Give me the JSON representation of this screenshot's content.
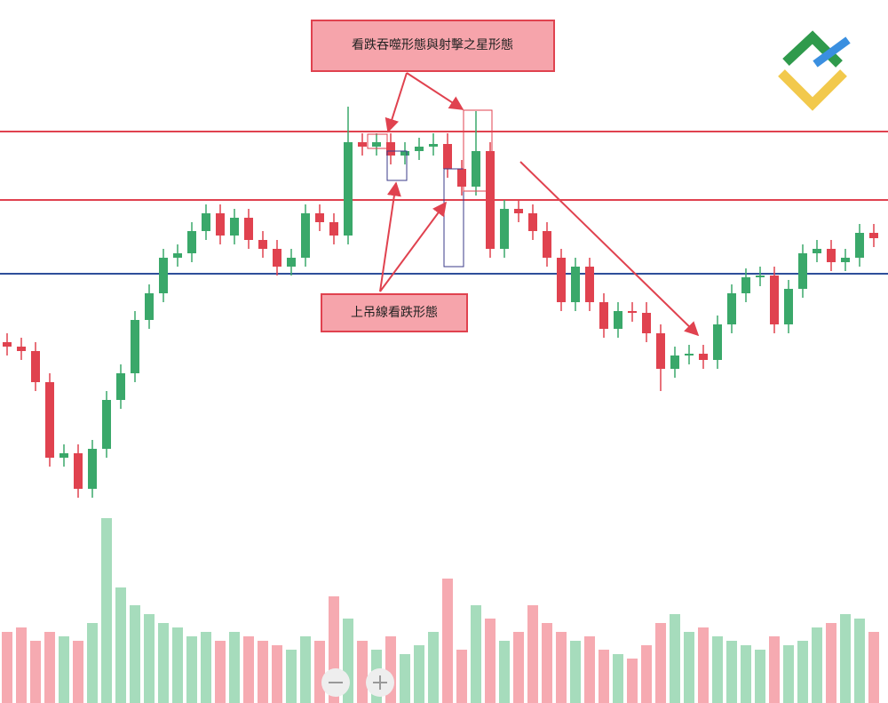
{
  "chart_data": {
    "type": "candlestick",
    "annotations": [
      "看跌吞噬形態與射擊之星形態",
      "上吊線看跌形態"
    ],
    "open": [
      43,
      42,
      41,
      34,
      17,
      18,
      10,
      19,
      30,
      36,
      48,
      54,
      62,
      63,
      68,
      72,
      67,
      71,
      66,
      64,
      60,
      62,
      72,
      70,
      67,
      88,
      87,
      88,
      85,
      86,
      87,
      87.6,
      82,
      78,
      86,
      64,
      73,
      72,
      68,
      62,
      52,
      60,
      52,
      46,
      50,
      49.6,
      45,
      37,
      40,
      40.4,
      39,
      47,
      54,
      57.6,
      58,
      47,
      55,
      63,
      64,
      61,
      62,
      67.6
    ],
    "high": [
      45,
      44,
      43,
      36,
      20,
      20,
      21,
      32,
      38,
      50,
      56,
      64,
      65,
      70,
      74,
      74,
      73,
      73,
      68,
      66,
      64,
      74,
      74,
      72,
      96,
      90,
      90,
      90,
      88,
      89,
      90,
      90,
      84,
      95,
      88,
      75,
      75,
      74,
      70,
      64,
      62,
      62,
      54,
      52,
      52,
      52,
      47,
      42,
      42.4,
      42.4,
      49,
      56,
      59.6,
      60,
      60,
      57,
      65,
      66,
      66,
      64,
      69.6,
      69.6
    ],
    "low": [
      40,
      39,
      32,
      15,
      15,
      8,
      8,
      17,
      28,
      34,
      46,
      52,
      60,
      61,
      66,
      65,
      65,
      64,
      62,
      58,
      58,
      60,
      68,
      65,
      65,
      85,
      85,
      83,
      83,
      84,
      85,
      80,
      76,
      76,
      62,
      62,
      70,
      66,
      60,
      50,
      50,
      50,
      44,
      44,
      47.6,
      43,
      32,
      35,
      38,
      37,
      37,
      45,
      52,
      55.6,
      45,
      45,
      53,
      61,
      59,
      59,
      60,
      64.4
    ],
    "close": [
      42,
      41,
      34,
      17,
      18,
      10,
      19,
      30,
      36,
      48,
      54,
      62,
      63,
      68,
      72,
      67,
      71,
      66,
      64,
      60,
      62,
      72,
      70,
      67,
      88,
      87,
      88,
      85,
      86,
      87,
      87.6,
      82,
      78,
      86,
      64,
      73,
      72,
      68,
      62,
      52,
      60,
      52,
      46,
      50,
      49.6,
      45,
      37,
      40,
      40.4,
      39,
      47,
      54,
      57.6,
      58,
      47,
      55,
      63,
      64,
      61,
      62,
      67.6,
      66.4
    ],
    "volume": [
      80,
      85,
      70,
      80,
      75,
      70,
      90,
      208,
      130,
      110,
      100,
      90,
      85,
      75,
      80,
      70,
      80,
      75,
      70,
      65,
      60,
      75,
      70,
      120,
      95,
      70,
      60,
      75,
      55,
      65,
      80,
      140,
      60,
      110,
      95,
      70,
      80,
      110,
      90,
      80,
      70,
      75,
      60,
      55,
      50,
      65,
      90,
      100,
      80,
      85,
      75,
      70,
      65,
      60,
      75,
      65,
      70,
      85,
      90,
      100,
      95,
      80
    ],
    "ylim": [
      0,
      120
    ],
    "volume_ylim": [
      0,
      250
    ],
    "up_color": "#3aa86a",
    "down_color": "#e0424f",
    "up_volume_color": "#a6dcbc",
    "down_volume_color": "#f6aab1",
    "levels": [
      {
        "value": 90.4,
        "color": "#e0424f"
      },
      {
        "value": 75,
        "color": "#e0424f"
      },
      {
        "value": 58.4,
        "color": "#2e4f9a"
      }
    ]
  }
}
